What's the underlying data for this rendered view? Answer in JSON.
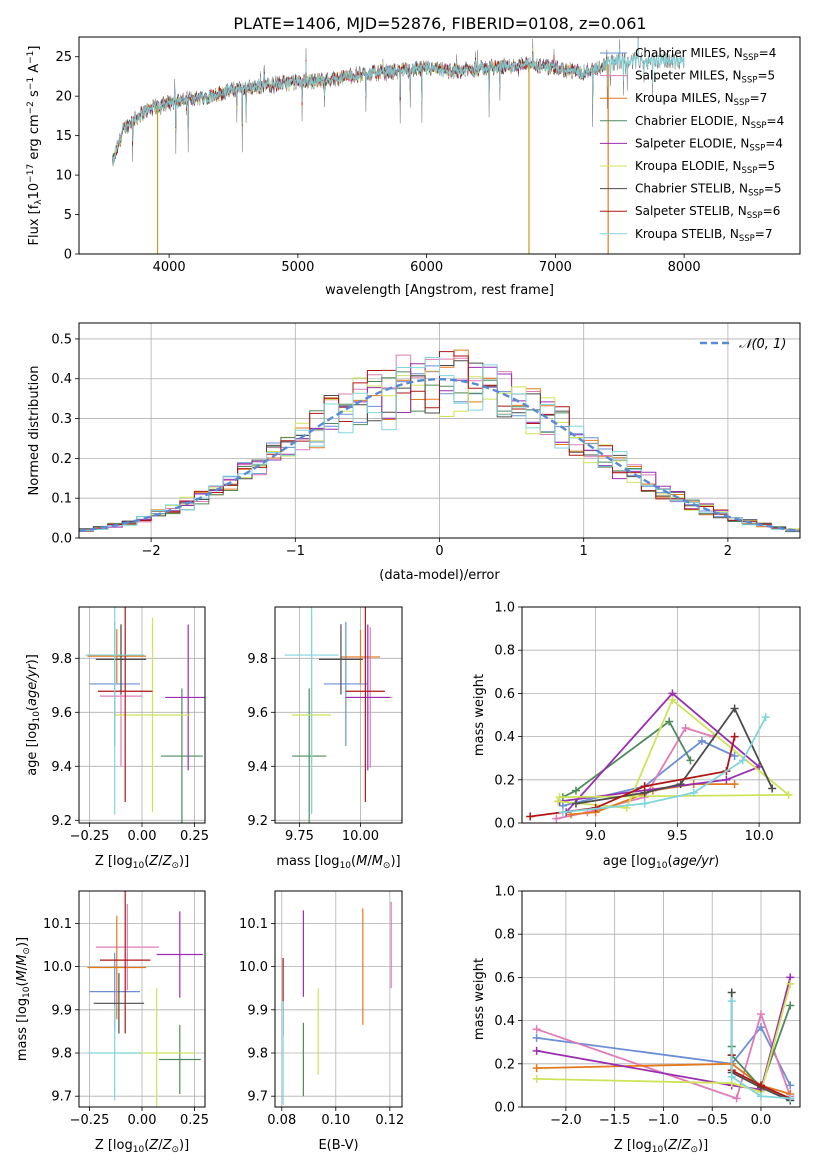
{
  "figure": {
    "title": "PLATE=1406, MJD=52876, FIBERID=0108, z=0.061"
  },
  "colors": {
    "chabrier_miles": "#6b8fd6",
    "salpeter_miles": "#e07bb8",
    "kroupa_miles": "#e3791c",
    "chabrier_elodie": "#4f8a5e",
    "salpeter_elodie": "#9a2eb0",
    "kroupa_elodie": "#cfe35a",
    "chabrier_stelib": "#4c4c4c",
    "salpeter_stelib": "#b01616",
    "kroupa_stelib": "#7fd6dc",
    "data_gray": "#808080",
    "gaussian": "#5a8ad6"
  },
  "legend_spectrum": [
    {
      "label": "Chabrier MILES, N",
      "sub": "SSP",
      "eq": "=4",
      "color_key": "chabrier_miles"
    },
    {
      "label": "Salpeter MILES, N",
      "sub": "SSP",
      "eq": "=5",
      "color_key": "salpeter_miles"
    },
    {
      "label": "Kroupa MILES, N",
      "sub": "SSP",
      "eq": "=7",
      "color_key": "kroupa_miles"
    },
    {
      "label": "Chabrier ELODIE, N",
      "sub": "SSP",
      "eq": "=4",
      "color_key": "chabrier_elodie"
    },
    {
      "label": "Salpeter ELODIE, N",
      "sub": "SSP",
      "eq": "=4",
      "color_key": "salpeter_elodie"
    },
    {
      "label": "Kroupa ELODIE, N",
      "sub": "SSP",
      "eq": "=5",
      "color_key": "kroupa_elodie"
    },
    {
      "label": "Chabrier STELIB, N",
      "sub": "SSP",
      "eq": "=5",
      "color_key": "chabrier_stelib"
    },
    {
      "label": "Salpeter STELIB, N",
      "sub": "SSP",
      "eq": "=6",
      "color_key": "salpeter_stelib"
    },
    {
      "label": "Kroupa STELIB, N",
      "sub": "SSP",
      "eq": "=7",
      "color_key": "kroupa_stelib"
    }
  ],
  "chart_data": [
    {
      "id": "spectrum",
      "type": "line",
      "xlabel": "wavelength [Angstrom, rest frame]",
      "ylabel": "Flux [f",
      "xlim": [
        3300,
        8900
      ],
      "ylim": [
        0,
        27.5
      ],
      "xticks": [
        4000,
        5000,
        6000,
        7000,
        8000
      ],
      "yticks": [
        0,
        5,
        10,
        15,
        20,
        25
      ],
      "continuum": {
        "x": [
          3560,
          3650,
          3800,
          3950,
          4100,
          4300,
          4500,
          4800,
          5000,
          5200,
          5500,
          5800,
          6000,
          6200,
          6400,
          6600,
          6800,
          7000,
          7200,
          7400,
          7500
        ],
        "y": [
          11.5,
          16.0,
          18.0,
          19.0,
          19.5,
          20.0,
          20.8,
          21.5,
          21.8,
          22.0,
          22.8,
          23.2,
          23.5,
          23.2,
          23.5,
          23.8,
          24.0,
          23.5,
          23.0,
          24.0,
          24.5
        ]
      },
      "model_coverage": [
        3560,
        7400
      ],
      "data_coverage": [
        3560,
        8000
      ],
      "grid": false
    },
    {
      "id": "residual_hist",
      "type": "bar",
      "xlabel": "(data-model)/error",
      "ylabel": "Normed distribution",
      "xlim": [
        -2.5,
        2.5
      ],
      "ylim": [
        0,
        0.54
      ],
      "xticks": [
        -2,
        -1,
        0,
        1,
        2
      ],
      "yticks": [
        0.0,
        0.1,
        0.2,
        0.3,
        0.4,
        0.5
      ],
      "bin_width": 0.1,
      "gaussian_label": "𝒩(0, 1)",
      "grid": true
    },
    {
      "id": "age_vs_Z",
      "type": "scatter",
      "xlabel": "Z [log",
      "ylabel": "age  [log",
      "xlim": [
        -0.3,
        0.3
      ],
      "ylim": [
        9.19,
        9.99
      ],
      "xticks": [
        -0.25,
        0.0,
        0.25
      ],
      "yticks": [
        9.2,
        9.4,
        9.6,
        9.8
      ],
      "points": [
        {
          "c": "chabrier_miles",
          "x": -0.13,
          "y": 9.705,
          "xerr": 0.12,
          "yerr": 0.23
        },
        {
          "c": "salpeter_miles",
          "x": -0.1,
          "y": 9.66,
          "xerr": 0.1,
          "yerr": 0.26
        },
        {
          "c": "kroupa_miles",
          "x": -0.12,
          "y": 9.808,
          "xerr": 0.14,
          "yerr": 0.1
        },
        {
          "c": "chabrier_elodie",
          "x": 0.19,
          "y": 9.438,
          "xerr": 0.1,
          "yerr": 0.25
        },
        {
          "c": "salpeter_elodie",
          "x": 0.22,
          "y": 9.655,
          "xerr": 0.11,
          "yerr": 0.27
        },
        {
          "c": "kroupa_elodie",
          "x": 0.05,
          "y": 9.59,
          "xerr": 0.18,
          "yerr": 0.36
        },
        {
          "c": "chabrier_stelib",
          "x": -0.1,
          "y": 9.796,
          "xerr": 0.12,
          "yerr": 0.13
        },
        {
          "c": "salpeter_stelib",
          "x": -0.08,
          "y": 9.678,
          "xerr": 0.13,
          "yerr": 0.41
        },
        {
          "c": "kroupa_stelib",
          "x": -0.13,
          "y": 9.812,
          "xerr": 0.14,
          "yerr": 0.59
        }
      ],
      "grid": true
    },
    {
      "id": "age_vs_mass",
      "type": "scatter",
      "xlabel": "mass [log",
      "ylabel": "",
      "xlim": [
        9.65,
        10.17
      ],
      "ylim": [
        9.19,
        9.99
      ],
      "xticks": [
        9.75,
        10.0
      ],
      "xticklabels": [
        "9.75",
        "10.00"
      ],
      "yticks": [
        9.2,
        9.4,
        9.6,
        9.8
      ],
      "points": [
        {
          "c": "chabrier_miles",
          "x": 9.94,
          "y": 9.705,
          "xerr": 0.09,
          "yerr": 0.23
        },
        {
          "c": "salpeter_miles",
          "x": 10.04,
          "y": 9.655,
          "xerr": 0.09,
          "yerr": 0.26
        },
        {
          "c": "kroupa_miles",
          "x": 10.0,
          "y": 9.805,
          "xerr": 0.08,
          "yerr": 0.1
        },
        {
          "c": "chabrier_elodie",
          "x": 9.79,
          "y": 9.438,
          "xerr": 0.07,
          "yerr": 0.25
        },
        {
          "c": "salpeter_elodie",
          "x": 10.03,
          "y": 9.655,
          "xerr": 0.09,
          "yerr": 0.27
        },
        {
          "c": "kroupa_elodie",
          "x": 9.8,
          "y": 9.59,
          "xerr": 0.08,
          "yerr": 0.36
        },
        {
          "c": "chabrier_stelib",
          "x": 9.92,
          "y": 9.796,
          "xerr": 0.09,
          "yerr": 0.13
        },
        {
          "c": "salpeter_stelib",
          "x": 10.02,
          "y": 9.678,
          "xerr": 0.08,
          "yerr": 0.41
        },
        {
          "c": "kroupa_stelib",
          "x": 9.8,
          "y": 9.812,
          "xerr": 0.11,
          "yerr": 0.59
        }
      ],
      "grid": true
    },
    {
      "id": "massweight_vs_age",
      "type": "line",
      "xlabel": "age  [log",
      "ylabel": "mass weight",
      "xlim": [
        8.55,
        10.25
      ],
      "ylim": [
        0,
        1.0
      ],
      "xticks": [
        9.0,
        9.5,
        10.0
      ],
      "yticks": [
        0.0,
        0.2,
        0.4,
        0.6,
        0.8,
        1.0
      ],
      "series": [
        {
          "c": "chabrier_miles",
          "x": [
            8.8,
            9.3,
            9.65,
            9.85
          ],
          "y": [
            0.08,
            0.17,
            0.38,
            0.31
          ]
        },
        {
          "c": "salpeter_miles",
          "x": [
            8.76,
            8.95,
            9.3,
            9.55,
            9.72
          ],
          "y": [
            0.02,
            0.05,
            0.12,
            0.44,
            0.4
          ]
        },
        {
          "c": "kroupa_miles",
          "x": [
            8.85,
            9.0,
            9.35,
            9.6,
            9.85
          ],
          "y": [
            0.04,
            0.05,
            0.15,
            0.18,
            0.18
          ]
        },
        {
          "c": "chabrier_elodie",
          "x": [
            8.8,
            8.88,
            9.45,
            9.58
          ],
          "y": [
            0.12,
            0.15,
            0.47,
            0.29
          ]
        },
        {
          "c": "salpeter_elodie",
          "x": [
            8.82,
            9.47,
            10.0,
            9.8,
            8.78
          ],
          "y": [
            0.05,
            0.6,
            0.26,
            0.2,
            0.1
          ]
        },
        {
          "c": "kroupa_elodie",
          "x": [
            8.77,
            9.19,
            9.47,
            10.18,
            8.78
          ],
          "y": [
            0.1,
            0.07,
            0.57,
            0.13,
            0.12
          ]
        },
        {
          "c": "chabrier_stelib",
          "x": [
            8.88,
            9.3,
            9.52,
            9.85,
            10.08
          ],
          "y": [
            0.09,
            0.14,
            0.18,
            0.53,
            0.16
          ]
        },
        {
          "c": "salpeter_stelib",
          "x": [
            8.6,
            9.0,
            9.3,
            9.8,
            9.85
          ],
          "y": [
            0.03,
            0.07,
            0.17,
            0.24,
            0.4
          ]
        },
        {
          "c": "kroupa_stelib",
          "x": [
            8.8,
            9.3,
            9.6,
            9.9,
            10.04
          ],
          "y": [
            0.05,
            0.09,
            0.14,
            0.29,
            0.49
          ]
        }
      ],
      "grid": true
    },
    {
      "id": "mass_vs_Z",
      "type": "scatter",
      "xlabel": "Z [log",
      "ylabel": "mass [log",
      "xlim": [
        -0.3,
        0.3
      ],
      "ylim": [
        9.675,
        10.175
      ],
      "xticks": [
        -0.25,
        0.0,
        0.25
      ],
      "yticks": [
        9.7,
        9.8,
        9.9,
        10.0,
        10.1
      ],
      "points": [
        {
          "c": "chabrier_miles",
          "x": -0.13,
          "y": 9.942,
          "xerr": 0.12,
          "yerr": 0.09
        },
        {
          "c": "salpeter_miles",
          "x": -0.07,
          "y": 10.045,
          "xerr": 0.15,
          "yerr": 0.1
        },
        {
          "c": "kroupa_miles",
          "x": -0.12,
          "y": 9.998,
          "xerr": 0.14,
          "yerr": 0.12
        },
        {
          "c": "chabrier_elodie",
          "x": 0.18,
          "y": 9.785,
          "xerr": 0.1,
          "yerr": 0.08
        },
        {
          "c": "salpeter_elodie",
          "x": 0.18,
          "y": 10.028,
          "xerr": 0.11,
          "yerr": 0.1
        },
        {
          "c": "kroupa_elodie",
          "x": 0.07,
          "y": 9.8,
          "xerr": 0.18,
          "yerr": 0.15
        },
        {
          "c": "chabrier_stelib",
          "x": -0.11,
          "y": 9.915,
          "xerr": 0.12,
          "yerr": 0.07
        },
        {
          "c": "salpeter_stelib",
          "x": -0.08,
          "y": 10.015,
          "xerr": 0.12,
          "yerr": 0.17
        },
        {
          "c": "kroupa_stelib",
          "x": -0.13,
          "y": 9.8,
          "xerr": 0.13,
          "yerr": 0.11
        }
      ],
      "grid": true
    },
    {
      "id": "mass_vs_ebv",
      "type": "scatter",
      "xlabel": "E(B-V)",
      "ylabel": "",
      "xlim": [
        0.0775,
        0.1245
      ],
      "ylim": [
        9.675,
        10.175
      ],
      "xticks": [
        0.08,
        0.1,
        0.12
      ],
      "xticklabels": [
        "0.08",
        "0.10",
        "0.12"
      ],
      "yticks": [
        9.7,
        9.8,
        9.9,
        10.0,
        10.1
      ],
      "points": [
        {
          "c": "salpeter_miles",
          "x": 0.1205,
          "y": 10.05,
          "xerr": 0,
          "yerr": 0.1
        },
        {
          "c": "kroupa_miles",
          "x": 0.11,
          "y": 10.0,
          "xerr": 0,
          "yerr": 0.135
        },
        {
          "c": "salpeter_elodie",
          "x": 0.088,
          "y": 10.03,
          "xerr": 0,
          "yerr": 0.1
        },
        {
          "c": "chabrier_elodie",
          "x": 0.088,
          "y": 9.785,
          "xerr": 0,
          "yerr": 0.085
        },
        {
          "c": "kroupa_elodie",
          "x": 0.0935,
          "y": 9.85,
          "xerr": 0,
          "yerr": 0.1
        },
        {
          "c": "salpeter_stelib",
          "x": 0.0805,
          "y": 9.93,
          "xerr": 0,
          "yerr": 0.09
        },
        {
          "c": "kroupa_stelib",
          "x": 0.0805,
          "y": 9.8,
          "xerr": 0,
          "yerr": 0.12
        }
      ],
      "grid": true
    },
    {
      "id": "massweight_vs_Z",
      "type": "line",
      "xlabel": "Z [log",
      "ylabel": "mass weight",
      "xlim": [
        -2.45,
        0.4
      ],
      "ylim": [
        0,
        1.0
      ],
      "xticks": [
        -2.0,
        -1.5,
        -1.0,
        -0.5,
        0.0
      ],
      "yticks": [
        0.0,
        0.2,
        0.4,
        0.6,
        0.8,
        1.0
      ],
      "series": [
        {
          "c": "chabrier_miles",
          "x": [
            -2.3,
            -0.3,
            0.0,
            0.3
          ],
          "y": [
            0.32,
            0.2,
            0.37,
            0.1
          ]
        },
        {
          "c": "salpeter_miles",
          "x": [
            -2.3,
            -0.25,
            0.0,
            0.3
          ],
          "y": [
            0.36,
            0.04,
            0.43,
            0.05
          ]
        },
        {
          "c": "kroupa_miles",
          "x": [
            -2.3,
            -0.3,
            0.0,
            0.3
          ],
          "y": [
            0.18,
            0.2,
            0.1,
            0.06
          ]
        },
        {
          "c": "chabrier_elodie",
          "x": [
            -0.3,
            -0.3,
            0.0,
            0.3
          ],
          "y": [
            0.28,
            0.24,
            0.09,
            0.47
          ]
        },
        {
          "c": "salpeter_elodie",
          "x": [
            -2.3,
            -0.3,
            0.0,
            0.3
          ],
          "y": [
            0.26,
            0.1,
            0.08,
            0.6
          ]
        },
        {
          "c": "kroupa_elodie",
          "x": [
            -2.3,
            -0.3,
            0.0,
            0.3
          ],
          "y": [
            0.13,
            0.11,
            0.07,
            0.57
          ]
        },
        {
          "c": "chabrier_stelib",
          "x": [
            -0.3,
            -0.3,
            0.0,
            0.3
          ],
          "y": [
            0.53,
            0.16,
            0.09,
            0.03
          ]
        },
        {
          "c": "salpeter_stelib",
          "x": [
            -0.3,
            -0.3,
            0.0,
            0.3
          ],
          "y": [
            0.24,
            0.17,
            0.1,
            0.04
          ]
        },
        {
          "c": "kroupa_stelib",
          "x": [
            -0.3,
            -0.3,
            0.0,
            0.3
          ],
          "y": [
            0.49,
            0.14,
            0.05,
            0.04
          ]
        }
      ],
      "grid": true
    }
  ]
}
